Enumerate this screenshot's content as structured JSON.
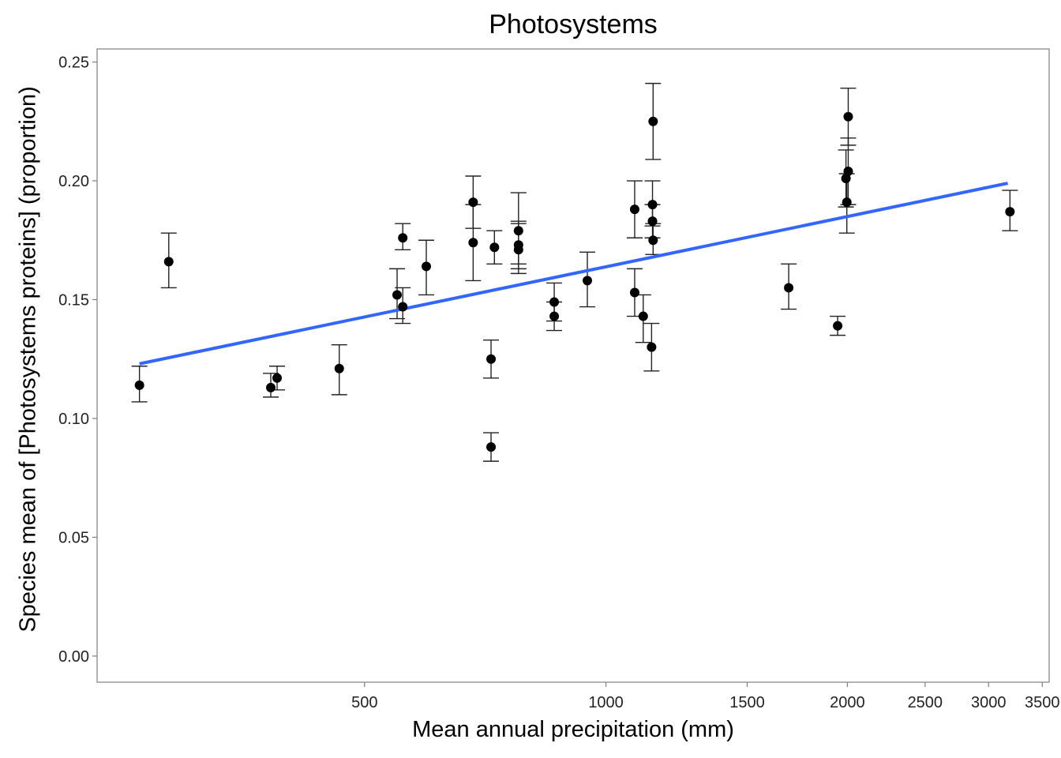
{
  "chart_data": {
    "type": "scatter",
    "title": "Photosystems",
    "xlabel": "Mean annual precipitation (mm)",
    "ylabel": "Species mean of [Photosystems proteins] (proportion)",
    "x_scale": "log",
    "xlim": [
      232,
      3570
    ],
    "ylim": [
      -0.011,
      0.2555
    ],
    "x_ticks": [
      500,
      1000,
      1500,
      2000,
      2500,
      3000,
      3500
    ],
    "y_ticks": [
      "0.00",
      "0.05",
      "0.10",
      "0.15",
      "0.20",
      "0.25"
    ],
    "y_tick_values": [
      0.0,
      0.05,
      0.1,
      0.15,
      0.2,
      0.25
    ],
    "grid": false,
    "colors": {
      "points": "#000000",
      "fit_line": "#3366FF",
      "frame": "#7f7f7f"
    },
    "fit_line": {
      "x": [
        262,
        3170
      ],
      "y": [
        0.123,
        0.199
      ]
    },
    "points": [
      {
        "x": 262,
        "y": 0.114,
        "lo": 0.107,
        "hi": 0.122
      },
      {
        "x": 285,
        "y": 0.166,
        "lo": 0.155,
        "hi": 0.178
      },
      {
        "x": 382,
        "y": 0.113,
        "lo": 0.109,
        "hi": 0.119
      },
      {
        "x": 389,
        "y": 0.117,
        "lo": 0.112,
        "hi": 0.122
      },
      {
        "x": 465,
        "y": 0.121,
        "lo": 0.11,
        "hi": 0.131
      },
      {
        "x": 549,
        "y": 0.152,
        "lo": 0.142,
        "hi": 0.163
      },
      {
        "x": 558,
        "y": 0.176,
        "lo": 0.171,
        "hi": 0.182
      },
      {
        "x": 558,
        "y": 0.147,
        "lo": 0.14,
        "hi": 0.155
      },
      {
        "x": 597,
        "y": 0.164,
        "lo": 0.152,
        "hi": 0.175
      },
      {
        "x": 683,
        "y": 0.191,
        "lo": 0.18,
        "hi": 0.202
      },
      {
        "x": 683,
        "y": 0.174,
        "lo": 0.158,
        "hi": 0.19
      },
      {
        "x": 719,
        "y": 0.088,
        "lo": 0.082,
        "hi": 0.094
      },
      {
        "x": 719,
        "y": 0.125,
        "lo": 0.117,
        "hi": 0.133
      },
      {
        "x": 726,
        "y": 0.172,
        "lo": 0.165,
        "hi": 0.179
      },
      {
        "x": 778,
        "y": 0.179,
        "lo": 0.165,
        "hi": 0.195
      },
      {
        "x": 778,
        "y": 0.173,
        "lo": 0.163,
        "hi": 0.183
      },
      {
        "x": 778,
        "y": 0.171,
        "lo": 0.161,
        "hi": 0.182
      },
      {
        "x": 862,
        "y": 0.149,
        "lo": 0.141,
        "hi": 0.157
      },
      {
        "x": 862,
        "y": 0.143,
        "lo": 0.137,
        "hi": 0.149
      },
      {
        "x": 948,
        "y": 0.158,
        "lo": 0.147,
        "hi": 0.17
      },
      {
        "x": 1086,
        "y": 0.188,
        "lo": 0.176,
        "hi": 0.2
      },
      {
        "x": 1086,
        "y": 0.153,
        "lo": 0.143,
        "hi": 0.163
      },
      {
        "x": 1113,
        "y": 0.143,
        "lo": 0.132,
        "hi": 0.152
      },
      {
        "x": 1140,
        "y": 0.13,
        "lo": 0.12,
        "hi": 0.14
      },
      {
        "x": 1145,
        "y": 0.225,
        "lo": 0.209,
        "hi": 0.241
      },
      {
        "x": 1143,
        "y": 0.19,
        "lo": 0.181,
        "hi": 0.2
      },
      {
        "x": 1143,
        "y": 0.183,
        "lo": 0.176,
        "hi": 0.19
      },
      {
        "x": 1145,
        "y": 0.175,
        "lo": 0.169,
        "hi": 0.182
      },
      {
        "x": 1690,
        "y": 0.155,
        "lo": 0.146,
        "hi": 0.165
      },
      {
        "x": 1945,
        "y": 0.139,
        "lo": 0.135,
        "hi": 0.143
      },
      {
        "x": 1992,
        "y": 0.201,
        "lo": 0.189,
        "hi": 0.213
      },
      {
        "x": 2005,
        "y": 0.227,
        "lo": 0.215,
        "hi": 0.239
      },
      {
        "x": 2005,
        "y": 0.204,
        "lo": 0.19,
        "hi": 0.218
      },
      {
        "x": 1997,
        "y": 0.191,
        "lo": 0.178,
        "hi": 0.203
      },
      {
        "x": 3190,
        "y": 0.187,
        "lo": 0.179,
        "hi": 0.196
      }
    ]
  }
}
